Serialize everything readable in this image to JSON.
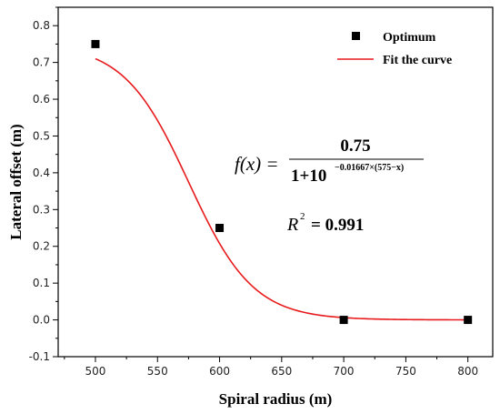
{
  "chart_data": {
    "type": "scatter",
    "xlabel": "Spiral radius (m)",
    "ylabel": "Lateral offset (m)",
    "xlim": [
      470,
      820
    ],
    "ylim": [
      -0.1,
      0.85
    ],
    "x_ticks": [
      500,
      550,
      600,
      650,
      700,
      750,
      800
    ],
    "y_ticks": [
      -0.1,
      0.0,
      0.1,
      0.2,
      0.3,
      0.4,
      0.5,
      0.6,
      0.7,
      0.8
    ],
    "legend_position": "top-right",
    "series": [
      {
        "name": "Optimum",
        "type": "scatter",
        "color": "#000000",
        "marker": "square",
        "x": [
          500,
          600,
          700,
          800
        ],
        "y": [
          0.75,
          0.25,
          0.0,
          0.0
        ]
      },
      {
        "name": "Fit the curve",
        "type": "line",
        "color": "#e8191b",
        "model": {
          "a": 0.75,
          "k": 0.01667,
          "x0": 575
        },
        "x_range": [
          500,
          800
        ]
      }
    ],
    "equation": {
      "lhs": "f(x) =",
      "numerator": "0.75",
      "denominator_base": "1+10",
      "denominator_exponent": "−0.01667×(575−x)",
      "r2_lhs": "R",
      "r2_sup": "2",
      "r2_rhs": "= 0.991"
    }
  }
}
